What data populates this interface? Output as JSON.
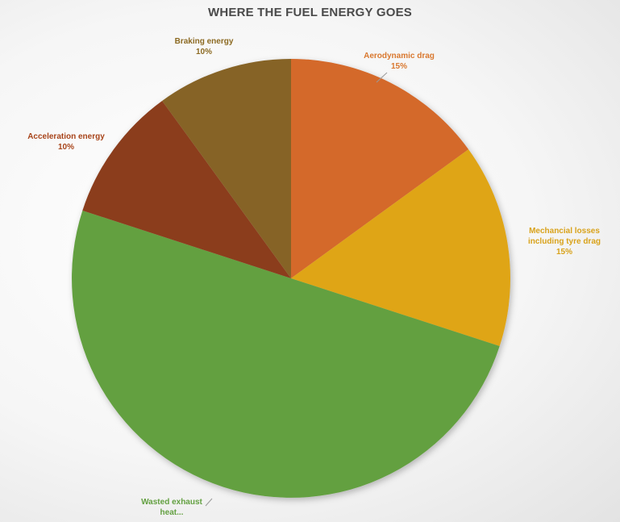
{
  "chart_data": {
    "type": "pie",
    "title": "WHERE THE FUEL ENERGY GOES",
    "slices": [
      {
        "label_lines": [
          "Aerodynamic drag",
          "15%"
        ],
        "value": 15,
        "color": "#d4692a",
        "label_color": "#d9782f"
      },
      {
        "label_lines": [
          "Mechancial losses",
          "including tyre drag",
          "15%"
        ],
        "value": 15,
        "color": "#dfa516",
        "label_color": "#d9a21a"
      },
      {
        "label_lines": [
          "Wasted exhaust",
          "heat..."
        ],
        "value": 50,
        "color": "#63a041",
        "label_color": "#63a041"
      },
      {
        "label_lines": [
          "Acceleration energy",
          "10%"
        ],
        "value": 10,
        "color": "#8b3e1f",
        "label_color": "#a8451b"
      },
      {
        "label_lines": [
          "Braking energy",
          "10%"
        ],
        "value": 10,
        "color": "#866326",
        "label_color": "#8c6a22"
      }
    ]
  }
}
